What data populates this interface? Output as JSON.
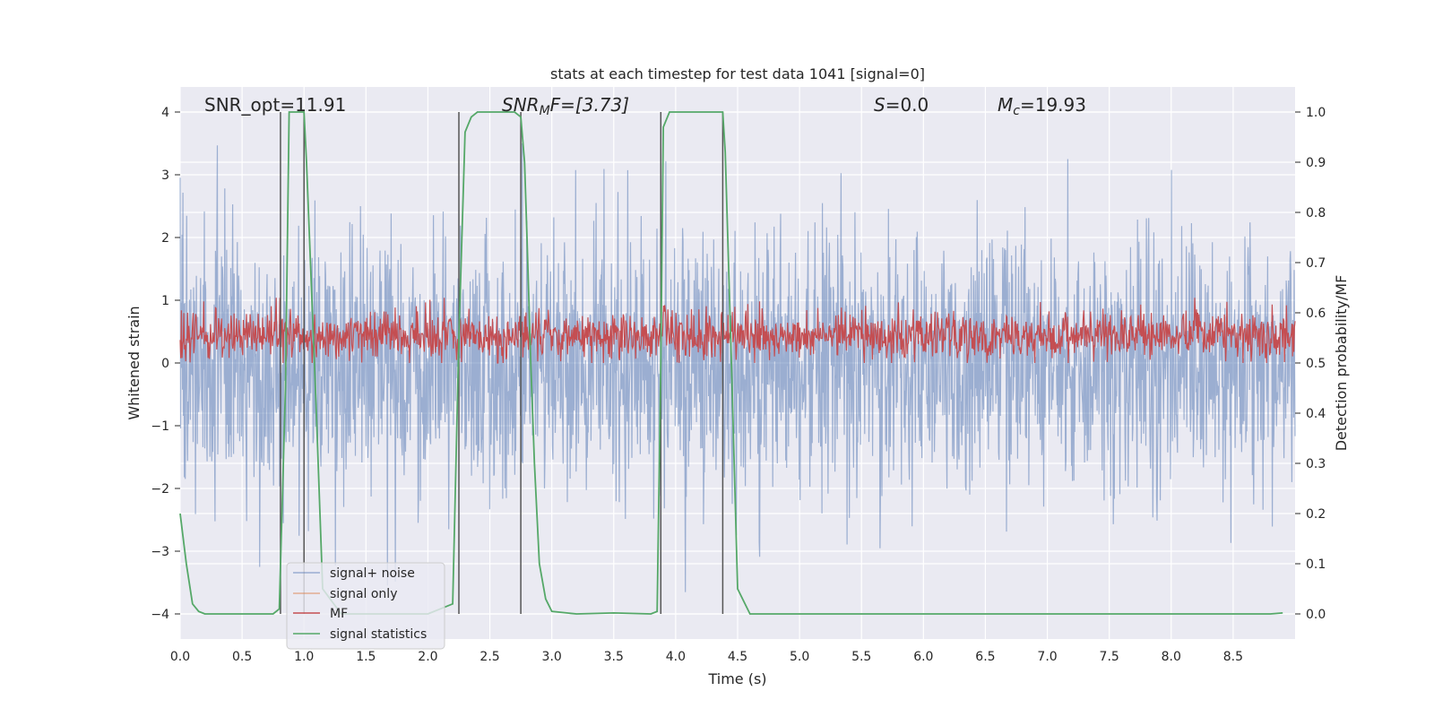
{
  "chart_data": {
    "type": "line",
    "title": "stats at each timestep for test data 1041 [signal=0]",
    "xlabel": "Time (s)",
    "ylabel": "Whitened strain",
    "ylabel_right": "Detection probability/MF",
    "xlim": [
      0.0,
      9.0
    ],
    "ylim": [
      -4.4,
      4.4
    ],
    "ylim_right": [
      -0.05,
      1.05
    ],
    "xticks": [
      "0.0",
      "0.5",
      "1.0",
      "1.5",
      "2.0",
      "2.5",
      "3.0",
      "3.5",
      "4.0",
      "4.5",
      "5.0",
      "5.5",
      "6.0",
      "6.5",
      "7.0",
      "7.5",
      "8.0",
      "8.5"
    ],
    "xtick_values": [
      0,
      0.5,
      1,
      1.5,
      2,
      2.5,
      3,
      3.5,
      4,
      4.5,
      5,
      5.5,
      6,
      6.5,
      7,
      7.5,
      8,
      8.5
    ],
    "yticks": [
      "4",
      "3",
      "2",
      "1",
      "0",
      "−1",
      "−2",
      "−3",
      "−4"
    ],
    "ytick_values": [
      4,
      3,
      2,
      1,
      0,
      -1,
      -2,
      -3,
      -4
    ],
    "yticks_right": [
      "1.0",
      "0.9",
      "0.8",
      "0.7",
      "0.6",
      "0.5",
      "0.4",
      "0.3",
      "0.2",
      "0.1",
      "0.0"
    ],
    "ytick_right_values": [
      1.0,
      0.9,
      0.8,
      0.7,
      0.6,
      0.5,
      0.4,
      0.3,
      0.2,
      0.1,
      0.0
    ],
    "grid": true,
    "annotations": {
      "snr_opt": "SNR_opt=11.91",
      "snr_mf_base": "SNR",
      "snr_mf_sub": "M",
      "snr_mf_rest": "F=[3.73]",
      "s_var": "S",
      "s_rest": "=0.0",
      "mc_var": "M",
      "mc_sub": "c",
      "mc_rest": "=19.93"
    },
    "legend": {
      "placement": "lower-left",
      "entries": [
        {
          "label": "signal+ noise",
          "color": "#4c72b0"
        },
        {
          "label": "signal only",
          "color": "#dd8452"
        },
        {
          "label": "MF",
          "color": "#c44e52"
        },
        {
          "label": "signal statistics",
          "color": "#55a868"
        }
      ]
    },
    "series": [
      {
        "name": "signal+ noise",
        "color": "#4c72b0",
        "description": "dense whitened noise, roughly within -3.5 to 3.5",
        "envelope": [
          -4.0,
          3.5
        ]
      },
      {
        "name": "MF",
        "color": "#c44e52",
        "description": "matched filter output around 0.55, within 0.5 to 0.63 (right axis)",
        "range_right": [
          0.5,
          0.63
        ]
      },
      {
        "name": "signal statistics",
        "color": "#55a868",
        "x": [
          0.0,
          0.05,
          0.1,
          0.15,
          0.2,
          0.3,
          0.5,
          0.7,
          0.75,
          0.8,
          0.85,
          0.88,
          0.95,
          1.0,
          1.02,
          1.1,
          1.15,
          1.3,
          1.5,
          1.7,
          2.0,
          2.2,
          2.25,
          2.3,
          2.35,
          2.4,
          2.45,
          2.5,
          2.6,
          2.7,
          2.75,
          2.78,
          2.8,
          2.83,
          2.86,
          2.9,
          2.95,
          3.0,
          3.2,
          3.5,
          3.8,
          3.85,
          3.88,
          3.9,
          3.95,
          4.0,
          4.2,
          4.38,
          4.4,
          4.45,
          4.5,
          4.6,
          5.0,
          6.0,
          7.0,
          8.0,
          8.8,
          8.9
        ],
        "values": [
          0.2,
          0.1,
          0.02,
          0.005,
          0.0,
          0.0,
          0.0,
          0.0,
          0.0,
          0.01,
          0.45,
          1.0,
          1.0,
          1.0,
          0.9,
          0.4,
          0.05,
          0.0,
          0.0,
          0.0,
          0.0,
          0.02,
          0.55,
          0.96,
          0.99,
          1.0,
          1.0,
          1.0,
          1.0,
          1.0,
          0.99,
          0.9,
          0.75,
          0.5,
          0.3,
          0.1,
          0.03,
          0.005,
          0.0,
          0.002,
          0.0,
          0.005,
          0.5,
          0.97,
          1.0,
          1.0,
          1.0,
          1.0,
          0.92,
          0.5,
          0.05,
          0.0,
          0.0,
          0.0,
          0.0,
          0.0,
          0.0,
          0.002
        ]
      }
    ],
    "vertical_lines": [
      0.81,
      1.0,
      2.25,
      2.75,
      3.88,
      4.38
    ]
  }
}
